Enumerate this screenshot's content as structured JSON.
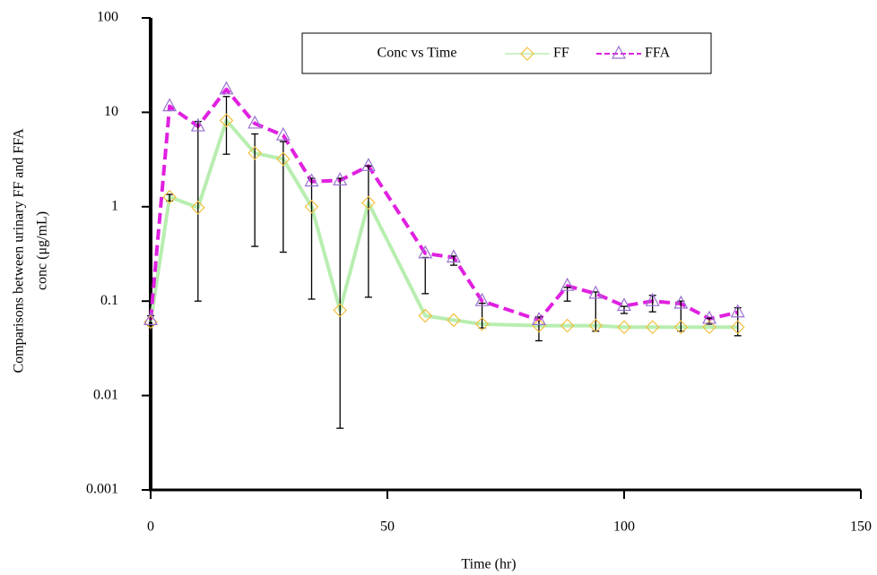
{
  "chart_data": {
    "type": "line",
    "ylabel": [
      "Comparisons between urinary FF and FFA",
      "conc (μg/mL)"
    ],
    "xlabel": "Time (hr)",
    "legend_title": "Conc vs Time",
    "legend": "top",
    "log_y": true,
    "x": [
      0,
      4,
      10,
      16,
      22,
      28,
      34,
      40,
      46,
      58,
      64,
      70,
      82,
      88,
      94,
      100,
      106,
      112,
      118,
      124
    ],
    "series": [
      {
        "name": "FF",
        "color": "#b8eeb0",
        "marker_color": "#f0c040",
        "marker": "diamond",
        "dash": false,
        "values": [
          0.06,
          1.27,
          0.98,
          8.2,
          3.7,
          3.2,
          1.0,
          0.08,
          1.1,
          0.07,
          0.063,
          0.057,
          0.055,
          0.055,
          0.055,
          0.053,
          0.053,
          0.053,
          0.053,
          0.053
        ]
      },
      {
        "name": "FFA",
        "color": "#e020e0",
        "marker_color": "#9a70d0",
        "marker": "triangle",
        "dash": true,
        "values": [
          0.063,
          11.6,
          7.1,
          17.5,
          7.6,
          5.7,
          1.85,
          1.9,
          2.7,
          0.32,
          0.29,
          0.1,
          0.063,
          0.145,
          0.12,
          0.089,
          0.1,
          0.094,
          0.065,
          0.076
        ]
      }
    ],
    "error_bars": {
      "low": [
        0.055,
        1.15,
        0.1,
        3.6,
        0.38,
        0.33,
        0.105,
        0.0045,
        0.11,
        0.12,
        0.24,
        0.052,
        0.038,
        0.1,
        0.048,
        0.074,
        0.077,
        0.048,
        0.057,
        0.043
      ],
      "high": [
        0.07,
        1.35,
        8,
        14.7,
        5.9,
        4.9,
        2.0,
        2.0,
        2.7,
        0.29,
        0.3,
        0.095,
        0.068,
        0.14,
        0.125,
        0.088,
        0.115,
        0.1,
        0.066,
        0.085
      ]
    },
    "xlim": [
      0,
      150
    ],
    "xticks": [
      0,
      50,
      100,
      150
    ],
    "ylim": [
      0.001,
      100
    ],
    "yticks": [
      0.001,
      0.01,
      0.1,
      1,
      10,
      100
    ]
  }
}
